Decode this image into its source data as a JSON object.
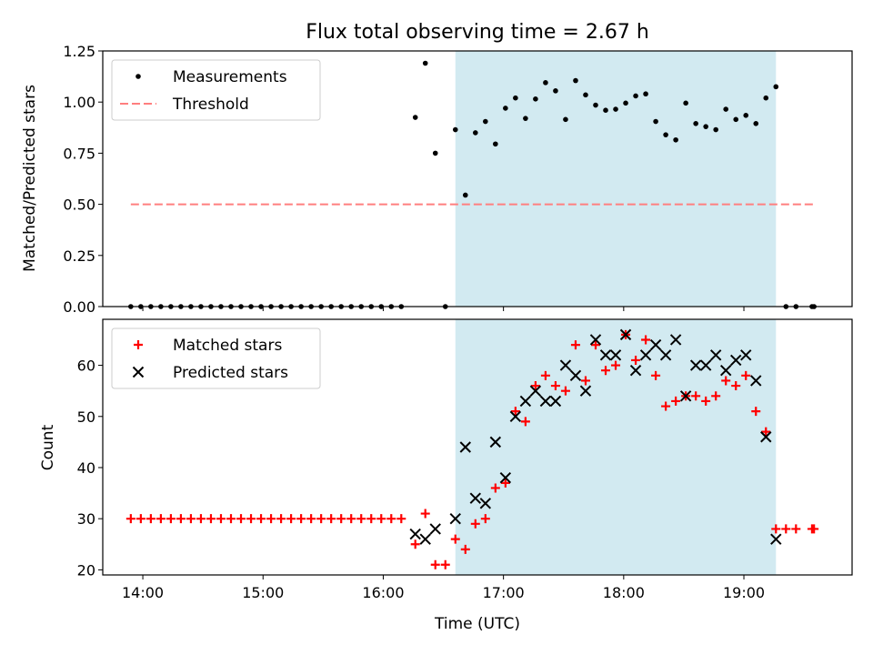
{
  "title": "Flux total observing time = 2.67 h",
  "colors": {
    "measure": "#000000",
    "threshold": "#ff7f7f",
    "matched": "#ff0000",
    "predicted": "#000000",
    "shade": "#add8e6"
  },
  "chart_data": [
    {
      "type": "scatter",
      "ylabel": "Matched/Predicted stars",
      "ylim": [
        0,
        1.25
      ],
      "yticks": [
        "0.00",
        "0.25",
        "0.50",
        "0.75",
        "1.00",
        "1.25"
      ],
      "xlim": [
        "13:40",
        "19:54"
      ],
      "shaded_span": [
        "16:36",
        "19:16"
      ],
      "legend_position": "upper-left",
      "series": [
        {
          "name": "Measurements",
          "marker": "dot",
          "points": [
            [
              "13:54",
              0
            ],
            [
              "13:59",
              0
            ],
            [
              "14:04",
              0
            ],
            [
              "14:09",
              0
            ],
            [
              "14:14",
              0
            ],
            [
              "14:19",
              0
            ],
            [
              "14:24",
              0
            ],
            [
              "14:29",
              0
            ],
            [
              "14:34",
              0
            ],
            [
              "14:39",
              0
            ],
            [
              "14:44",
              0
            ],
            [
              "14:49",
              0
            ],
            [
              "14:54",
              0
            ],
            [
              "14:59",
              0
            ],
            [
              "15:04",
              0
            ],
            [
              "15:09",
              0
            ],
            [
              "15:14",
              0
            ],
            [
              "15:19",
              0
            ],
            [
              "15:24",
              0
            ],
            [
              "15:29",
              0
            ],
            [
              "15:34",
              0
            ],
            [
              "15:39",
              0
            ],
            [
              "15:44",
              0
            ],
            [
              "15:49",
              0
            ],
            [
              "15:54",
              0
            ],
            [
              "15:59",
              0
            ],
            [
              "16:04",
              0
            ],
            [
              "16:09",
              0
            ],
            [
              "16:16",
              0.925
            ],
            [
              "16:21",
              1.19
            ],
            [
              "16:26",
              0.75
            ],
            [
              "16:31",
              0
            ],
            [
              "16:36",
              0.865
            ],
            [
              "16:41",
              0.545
            ],
            [
              "16:46",
              0.85
            ],
            [
              "16:51",
              0.905
            ],
            [
              "16:56",
              0.795
            ],
            [
              "17:01",
              0.97
            ],
            [
              "17:06",
              1.02
            ],
            [
              "17:11",
              0.92
            ],
            [
              "17:16",
              1.015
            ],
            [
              "17:21",
              1.095
            ],
            [
              "17:26",
              1.055
            ],
            [
              "17:31",
              0.915
            ],
            [
              "17:36",
              1.105
            ],
            [
              "17:41",
              1.035
            ],
            [
              "17:46",
              0.985
            ],
            [
              "17:51",
              0.96
            ],
            [
              "17:56",
              0.965
            ],
            [
              "18:01",
              0.995
            ],
            [
              "18:06",
              1.03
            ],
            [
              "18:11",
              1.04
            ],
            [
              "18:16",
              0.905
            ],
            [
              "18:21",
              0.84
            ],
            [
              "18:26",
              0.815
            ],
            [
              "18:31",
              0.995
            ],
            [
              "18:36",
              0.895
            ],
            [
              "18:41",
              0.88
            ],
            [
              "18:46",
              0.865
            ],
            [
              "18:51",
              0.965
            ],
            [
              "18:56",
              0.915
            ],
            [
              "19:01",
              0.935
            ],
            [
              "19:06",
              0.895
            ],
            [
              "19:11",
              1.02
            ],
            [
              "19:16",
              1.075
            ],
            [
              "19:21",
              0
            ],
            [
              "19:26",
              0
            ],
            [
              "19:34",
              0
            ],
            [
              "19:35",
              0
            ]
          ]
        },
        {
          "name": "Threshold",
          "style": "dashed",
          "points": [
            [
              "13:54",
              0.5
            ],
            [
              "19:35",
              0.5
            ]
          ]
        }
      ]
    },
    {
      "type": "scatter",
      "ylabel": "Count",
      "xlabel": "Time (UTC)",
      "ylim": [
        19,
        69
      ],
      "yticks": [
        "20",
        "30",
        "40",
        "50",
        "60"
      ],
      "xticks": [
        "14:00",
        "15:00",
        "16:00",
        "17:00",
        "18:00",
        "19:00"
      ],
      "xlim": [
        "13:40",
        "19:54"
      ],
      "shaded_span": [
        "16:36",
        "19:16"
      ],
      "legend_position": "upper-left",
      "series": [
        {
          "name": "Matched stars",
          "marker": "plus",
          "points": [
            [
              "13:54",
              30
            ],
            [
              "13:59",
              30
            ],
            [
              "14:04",
              30
            ],
            [
              "14:09",
              30
            ],
            [
              "14:14",
              30
            ],
            [
              "14:19",
              30
            ],
            [
              "14:24",
              30
            ],
            [
              "14:29",
              30
            ],
            [
              "14:34",
              30
            ],
            [
              "14:39",
              30
            ],
            [
              "14:44",
              30
            ],
            [
              "14:49",
              30
            ],
            [
              "14:54",
              30
            ],
            [
              "14:59",
              30
            ],
            [
              "15:04",
              30
            ],
            [
              "15:09",
              30
            ],
            [
              "15:14",
              30
            ],
            [
              "15:19",
              30
            ],
            [
              "15:24",
              30
            ],
            [
              "15:29",
              30
            ],
            [
              "15:34",
              30
            ],
            [
              "15:39",
              30
            ],
            [
              "15:44",
              30
            ],
            [
              "15:49",
              30
            ],
            [
              "15:54",
              30
            ],
            [
              "15:59",
              30
            ],
            [
              "16:04",
              30
            ],
            [
              "16:09",
              30
            ],
            [
              "16:16",
              25
            ],
            [
              "16:21",
              31
            ],
            [
              "16:26",
              21
            ],
            [
              "16:31",
              21
            ],
            [
              "16:36",
              26
            ],
            [
              "16:41",
              24
            ],
            [
              "16:46",
              29
            ],
            [
              "16:51",
              30
            ],
            [
              "16:56",
              36
            ],
            [
              "17:01",
              37
            ],
            [
              "17:06",
              51
            ],
            [
              "17:11",
              49
            ],
            [
              "17:16",
              56
            ],
            [
              "17:21",
              58
            ],
            [
              "17:26",
              56
            ],
            [
              "17:31",
              55
            ],
            [
              "17:36",
              64
            ],
            [
              "17:41",
              57
            ],
            [
              "17:46",
              64
            ],
            [
              "17:51",
              59
            ],
            [
              "17:56",
              60
            ],
            [
              "18:01",
              66
            ],
            [
              "18:06",
              61
            ],
            [
              "18:11",
              65
            ],
            [
              "18:16",
              58
            ],
            [
              "18:21",
              52
            ],
            [
              "18:26",
              53
            ],
            [
              "18:31",
              54
            ],
            [
              "18:36",
              54
            ],
            [
              "18:41",
              53
            ],
            [
              "18:46",
              54
            ],
            [
              "18:51",
              57
            ],
            [
              "18:56",
              56
            ],
            [
              "19:01",
              58
            ],
            [
              "19:06",
              51
            ],
            [
              "19:11",
              47
            ],
            [
              "19:16",
              28
            ],
            [
              "19:21",
              28
            ],
            [
              "19:26",
              28
            ],
            [
              "19:34",
              28
            ],
            [
              "19:35",
              28
            ]
          ]
        },
        {
          "name": "Predicted stars",
          "marker": "x",
          "points": [
            [
              "16:16",
              27
            ],
            [
              "16:21",
              26
            ],
            [
              "16:26",
              28
            ],
            [
              "16:36",
              30
            ],
            [
              "16:41",
              44
            ],
            [
              "16:46",
              34
            ],
            [
              "16:51",
              33
            ],
            [
              "16:56",
              45
            ],
            [
              "17:01",
              38
            ],
            [
              "17:06",
              50
            ],
            [
              "17:11",
              53
            ],
            [
              "17:16",
              55
            ],
            [
              "17:21",
              53
            ],
            [
              "17:26",
              53
            ],
            [
              "17:31",
              60
            ],
            [
              "17:36",
              58
            ],
            [
              "17:41",
              55
            ],
            [
              "17:46",
              65
            ],
            [
              "17:51",
              62
            ],
            [
              "17:56",
              62
            ],
            [
              "18:01",
              66
            ],
            [
              "18:06",
              59
            ],
            [
              "18:11",
              62
            ],
            [
              "18:16",
              64
            ],
            [
              "18:21",
              62
            ],
            [
              "18:26",
              65
            ],
            [
              "18:31",
              54
            ],
            [
              "18:36",
              60
            ],
            [
              "18:41",
              60
            ],
            [
              "18:46",
              62
            ],
            [
              "18:51",
              59
            ],
            [
              "18:56",
              61
            ],
            [
              "19:01",
              62
            ],
            [
              "19:06",
              57
            ],
            [
              "19:11",
              46
            ],
            [
              "19:16",
              26
            ]
          ]
        }
      ]
    }
  ]
}
